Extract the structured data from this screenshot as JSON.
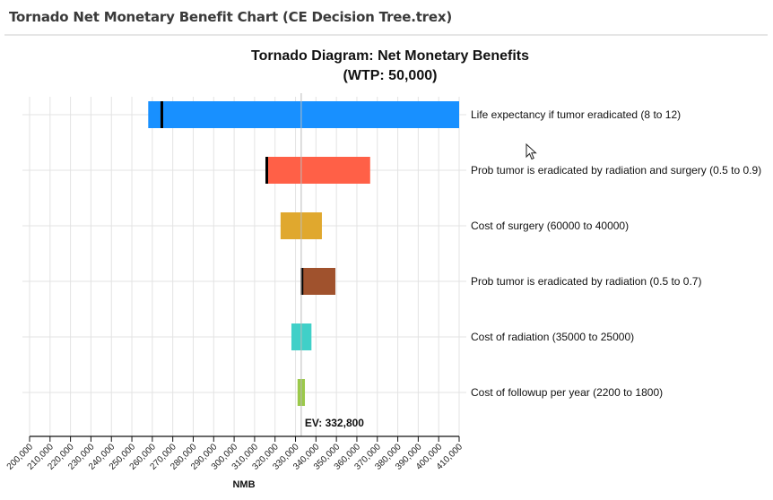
{
  "window": {
    "title": "Tornado Net Monetary Benefit Chart (CE Decision Tree.trex)"
  },
  "chart_data": {
    "type": "bar",
    "orientation": "horizontal",
    "subtype": "tornado",
    "title": "Tornado Diagram: Net Monetary Benefits",
    "subtitle": "(WTP: 50,000)",
    "xlabel": "NMB",
    "ylabel": "",
    "xlim": [
      200000,
      410000
    ],
    "xticks": [
      200000,
      210000,
      220000,
      230000,
      240000,
      250000,
      260000,
      270000,
      280000,
      290000,
      300000,
      310000,
      320000,
      330000,
      340000,
      350000,
      360000,
      370000,
      380000,
      390000,
      400000,
      410000
    ],
    "xtick_labels": [
      "200,000",
      "210,000",
      "220,000",
      "230,000",
      "240,000",
      "250,000",
      "260,000",
      "270,000",
      "280,000",
      "290,000",
      "300,000",
      "310,000",
      "320,000",
      "330,000",
      "340,000",
      "350,000",
      "360,000",
      "370,000",
      "380,000",
      "390,000",
      "400,000",
      "410,000"
    ],
    "grid": true,
    "ev": 332800,
    "ev_label": "EV: 332,800",
    "bars": [
      {
        "label": "Life expectancy if tumor eradicated (8 to 12)",
        "low": 258000,
        "high": 410000,
        "marker": 264000,
        "color": "#1890FF"
      },
      {
        "label": "Prob tumor is eradicated by radiation and surgery (0.5 to 0.9)",
        "low": 315300,
        "high": 366500,
        "marker": 315300,
        "color": "#FF6047"
      },
      {
        "label": "Cost of surgery (60000 to 40000)",
        "low": 322700,
        "high": 342900,
        "marker": null,
        "color": "#E0A82E"
      },
      {
        "label": "Prob tumor is eradicated by radiation (0.5 to 0.7)",
        "low": 332500,
        "high": 349500,
        "marker": 332500,
        "color": "#A0522D"
      },
      {
        "label": "Cost of radiation (35000 to 25000)",
        "low": 328000,
        "high": 337800,
        "marker": null,
        "color": "#40D0C8"
      },
      {
        "label": "Cost of followup per year (2200 to 1800)",
        "low": 331000,
        "high": 334600,
        "marker": null,
        "color": "#9BC94A"
      }
    ]
  }
}
